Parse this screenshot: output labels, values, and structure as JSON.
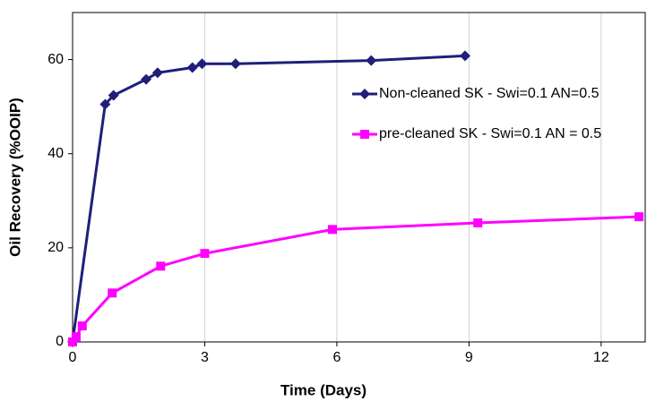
{
  "chart_data": {
    "type": "line",
    "x_label": "Time (Days)",
    "y_label": "Oil Recovery (%OOIP)",
    "xlim": [
      0,
      13
    ],
    "xticks": [
      0,
      3,
      6,
      9,
      12
    ],
    "ylim": [
      0,
      70
    ],
    "yticks": [
      0,
      20,
      40,
      60
    ],
    "grid": "x",
    "legend": "upper right",
    "series": [
      {
        "name": "Non-cleaned SK - Swi=0.1 AN=0.5",
        "color": "#1f1f7a",
        "marker": "diamond",
        "x": [
          0,
          0.74,
          0.93,
          1.67,
          1.93,
          2.72,
          2.94,
          3.7,
          6.78,
          8.91
        ],
        "values": [
          0,
          50.5,
          52.4,
          55.8,
          57.2,
          58.3,
          59.1,
          59.1,
          59.8,
          60.8
        ]
      },
      {
        "name": "pre-cleaned SK - Swi=0.1 AN = 0.5",
        "color": "#ff00ff",
        "marker": "square",
        "x": [
          0,
          0.08,
          0.22,
          0.9,
          2.0,
          3.0,
          5.9,
          9.2,
          12.86
        ],
        "values": [
          0,
          1.1,
          3.4,
          10.4,
          16.1,
          18.8,
          23.9,
          25.3,
          26.6
        ]
      }
    ]
  }
}
